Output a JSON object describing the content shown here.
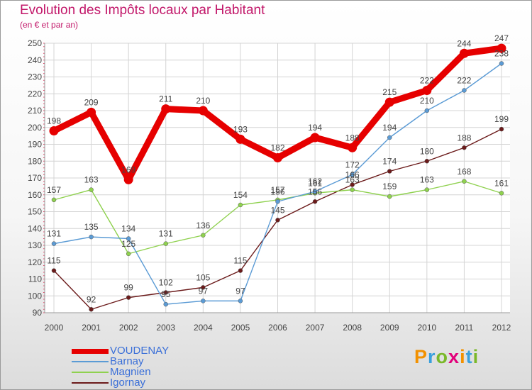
{
  "header": {
    "title": "Evolution des Impôts locaux par Habitant",
    "subtitle": "(en € et par an)"
  },
  "chart_data": {
    "type": "line",
    "title": "Evolution des Impôts locaux par Habitant",
    "subtitle": "(en € et par an)",
    "xlabel": "",
    "ylabel": "",
    "categories": [
      "2000",
      "2001",
      "2002",
      "2003",
      "2004",
      "2005",
      "2006",
      "2007",
      "2008",
      "2009",
      "2010",
      "2011",
      "2012"
    ],
    "ylim": [
      90,
      250
    ],
    "yticks": [
      90,
      100,
      110,
      120,
      130,
      140,
      150,
      160,
      170,
      180,
      190,
      200,
      210,
      220,
      230,
      240,
      250
    ],
    "grid": true,
    "legend_position": "bottom-left",
    "series": [
      {
        "name": "VOUDENAY",
        "color": "#e60000",
        "values": [
          198,
          209,
          169,
          211,
          210,
          193,
          182,
          194,
          188,
          215,
          222,
          244,
          247
        ]
      },
      {
        "name": "Barnay",
        "color": "#5b9bd5",
        "values": [
          131,
          135,
          134,
          95,
          97,
          97,
          156,
          162,
          172,
          194,
          210,
          222,
          238
        ]
      },
      {
        "name": "Magnien",
        "color": "#8fd14f",
        "values": [
          157,
          163,
          125,
          131,
          136,
          154,
          157,
          161,
          163,
          159,
          163,
          168,
          161
        ]
      },
      {
        "name": "Igornay",
        "color": "#6b1a1a",
        "values": [
          115,
          92,
          99,
          102,
          105,
          115,
          145,
          156,
          166,
          174,
          180,
          188,
          199
        ]
      }
    ]
  },
  "logo": {
    "letters": [
      "P",
      "r",
      "o",
      "x",
      "i",
      "t",
      "i"
    ],
    "colors": [
      "#f29100",
      "#3aa0dc",
      "#7ab829",
      "#e2007a",
      "#f29100",
      "#3aa0dc",
      "#7ab829"
    ]
  }
}
